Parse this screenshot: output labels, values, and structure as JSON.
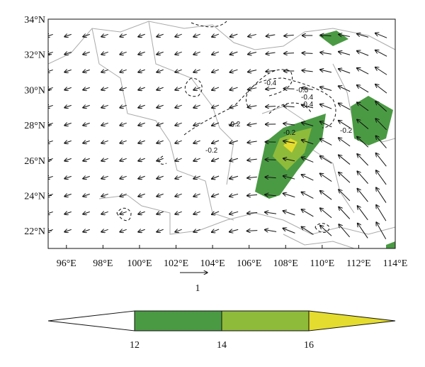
{
  "map": {
    "xlim": [
      95,
      114
    ],
    "ylim": [
      21,
      34
    ],
    "xticks": [
      {
        "value": 96,
        "label": "96°E"
      },
      {
        "value": 98,
        "label": "98°E"
      },
      {
        "value": 100,
        "label": "100°E"
      },
      {
        "value": 102,
        "label": "102°E"
      },
      {
        "value": 104,
        "label": "104°E"
      },
      {
        "value": 106,
        "label": "106°E"
      },
      {
        "value": 108,
        "label": "108°E"
      },
      {
        "value": 110,
        "label": "110°E"
      },
      {
        "value": 112,
        "label": "112°E"
      },
      {
        "value": 114,
        "label": "114°E"
      }
    ],
    "yticks": [
      {
        "value": 22,
        "label": "22°N"
      },
      {
        "value": 24,
        "label": "24°N"
      },
      {
        "value": 26,
        "label": "26°N"
      },
      {
        "value": 28,
        "label": "28°N"
      },
      {
        "value": 30,
        "label": "30°N"
      },
      {
        "value": 32,
        "label": "32°N"
      },
      {
        "value": 34,
        "label": "34°N"
      }
    ],
    "contour_labels": [
      "-0.4",
      "-0.2",
      "-0.2",
      "-0.4",
      "-0.2",
      "-0.4",
      "-0.2",
      "-0.5"
    ],
    "reference_vector": 1,
    "colorbar": {
      "boundaries": [
        12,
        14,
        16
      ],
      "colors": [
        "#ffffff",
        "#4a9a43",
        "#8fbb3a",
        "#e4dc2e"
      ]
    }
  }
}
